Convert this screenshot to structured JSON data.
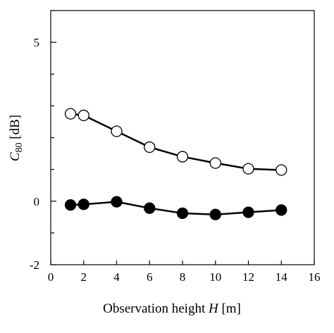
{
  "chart_data": {
    "type": "line",
    "xlabel": {
      "prefix": "Observation height ",
      "italic": "H",
      "suffix": " [m]"
    },
    "ylabel": {
      "italic": "C",
      "subscript": "80",
      "suffix": " [dB]"
    },
    "xlim": [
      0,
      16
    ],
    "ylim": [
      -2,
      6
    ],
    "x_ticks": [
      0,
      2,
      4,
      6,
      8,
      10,
      12,
      14,
      16
    ],
    "y_major_ticks": [
      -2,
      0,
      5
    ],
    "y_minor_ticks": [
      -1,
      1,
      2,
      3,
      4,
      6
    ],
    "y_tick_labels": [
      "-2",
      "0",
      "5"
    ],
    "grid": false,
    "legend": "none",
    "series": [
      {
        "marker": "open-circle",
        "color": "#000000",
        "x": [
          1.2,
          2,
          4,
          6,
          8,
          10,
          12,
          14
        ],
        "y": [
          2.75,
          2.7,
          2.2,
          1.7,
          1.4,
          1.2,
          1.02,
          0.98
        ]
      },
      {
        "marker": "filled-circle",
        "color": "#000000",
        "x": [
          1.2,
          2,
          4,
          6,
          8,
          10,
          12,
          14
        ],
        "y": [
          -0.12,
          -0.1,
          -0.02,
          -0.22,
          -0.38,
          -0.42,
          -0.35,
          -0.28
        ]
      }
    ]
  }
}
